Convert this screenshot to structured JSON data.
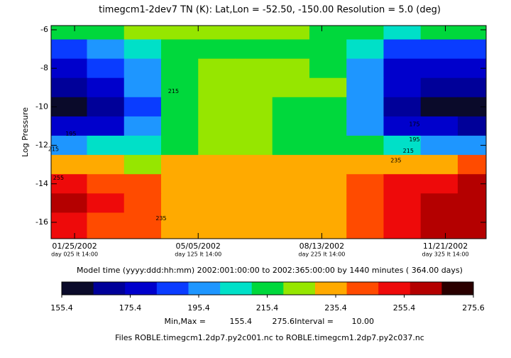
{
  "chart_data": {
    "type": "contour",
    "title": "timegcm1-2dev7 TN (K):  Lat,Lon = -52.50, -150.00 Resolution = 5.0 (deg)",
    "y_label": "Log Pressure",
    "xlim": [
      6,
      358
    ],
    "ylim": [
      -16.85,
      -5.78
    ],
    "yticks": [
      -6,
      -8,
      -10,
      -12,
      -14,
      -16
    ],
    "xticks": [
      {
        "value": 25,
        "label": "01/25/2002"
      },
      {
        "value": 125,
        "label": "05/05/2002"
      },
      {
        "value": 225,
        "label": "08/13/2002"
      },
      {
        "value": 325,
        "label": "11/21/2002"
      }
    ],
    "xtick_sublabels": [
      "day 025 lt 14:00",
      "day 125 lt 14:00",
      "day 225 lt 14:00",
      "day 325 lt 14:00"
    ],
    "x": [
      20,
      50,
      80,
      110,
      140,
      170,
      200,
      230,
      260,
      290,
      320,
      350
    ],
    "y": [
      -6,
      -7,
      -8,
      -9,
      -10,
      -11,
      -12,
      -13,
      -14,
      -15,
      -16
    ],
    "z": [
      [
        220,
        225,
        230,
        230,
        230,
        228,
        228,
        225,
        225,
        215,
        220,
        225
      ],
      [
        190,
        200,
        210,
        220,
        225,
        225,
        225,
        222,
        210,
        195,
        190,
        195
      ],
      [
        185,
        190,
        205,
        225,
        232,
        233,
        232,
        225,
        205,
        185,
        180,
        182
      ],
      [
        175,
        180,
        200,
        222,
        230,
        232,
        230,
        228,
        200,
        180,
        172,
        170
      ],
      [
        160,
        170,
        195,
        220,
        228,
        228,
        225,
        222,
        200,
        175,
        162,
        158
      ],
      [
        178,
        185,
        200,
        222,
        228,
        228,
        224,
        222,
        205,
        185,
        178,
        175
      ],
      [
        205,
        208,
        215,
        225,
        230,
        228,
        225,
        225,
        218,
        210,
        205,
        205
      ],
      [
        240,
        238,
        235,
        238,
        240,
        238,
        236,
        238,
        236,
        240,
        245,
        248
      ],
      [
        262,
        255,
        248,
        245,
        242,
        240,
        238,
        242,
        250,
        258,
        264,
        266
      ],
      [
        268,
        260,
        250,
        245,
        240,
        238,
        238,
        245,
        255,
        265,
        270,
        272
      ],
      [
        262,
        255,
        248,
        243,
        238,
        236,
        237,
        243,
        252,
        262,
        268,
        268
      ]
    ],
    "contour_labels": [
      {
        "label": "215",
        "x": 8,
        "y": -12.2
      },
      {
        "label": "195",
        "x": 22,
        "y": -11.4
      },
      {
        "label": "255",
        "x": 12,
        "y": -13.7
      },
      {
        "label": "215",
        "x": 105,
        "y": -9.2
      },
      {
        "label": "235",
        "x": 285,
        "y": -12.8
      },
      {
        "label": "215",
        "x": 295,
        "y": -12.3
      },
      {
        "label": "195",
        "x": 300,
        "y": -11.7
      },
      {
        "label": "235",
        "x": 95,
        "y": -15.8
      },
      {
        "label": "175",
        "x": 300,
        "y": -10.9
      }
    ],
    "model_time": "Model time (yyyy:ddd:hh:mm) 2002:001:00:00 to 2002:365:00:00 by   1440 minutes ( 364.00 days)",
    "colorbar": {
      "colors": [
        "#0a0a2a",
        "#000099",
        "#0000cc",
        "#0a3cff",
        "#1e96ff",
        "#00e0c8",
        "#00d83c",
        "#96e600",
        "#ffaa00",
        "#ff4b00",
        "#ee0a0a",
        "#b40000",
        "#2a0000"
      ],
      "ticks": [
        155.4,
        175.4,
        195.4,
        215.4,
        235.4,
        255.4,
        275.6
      ],
      "lim": [
        155.4,
        275.6
      ],
      "step": 10
    },
    "min_max_label": "Min,Max =",
    "min": 155.4,
    "max": 275.6,
    "interval_label": "Interval =",
    "interval": {
      "value": 10,
      "label": "10.00"
    },
    "files": "Files ROBLE.timegcm1.2dp7.py2c001.nc to ROBLE.timegcm1.2dp7.py2c037.nc"
  }
}
